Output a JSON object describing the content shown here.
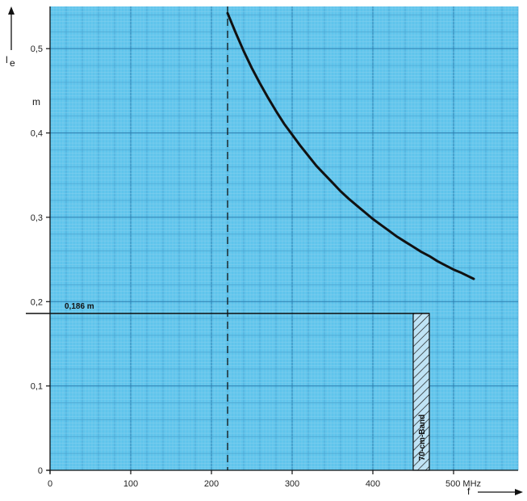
{
  "chart_data": {
    "type": "line",
    "title": "",
    "xlabel": "f",
    "ylabel": "l",
    "ylabel_subscript": "e",
    "y_unit": "m",
    "x_unit": "MHz",
    "xlim": [
      0,
      580
    ],
    "ylim": [
      0,
      0.55
    ],
    "x_ticks": [
      0,
      100,
      200,
      300,
      400,
      500
    ],
    "x_tick_labels": [
      "0",
      "100",
      "200",
      "300",
      "400",
      "500 MHz"
    ],
    "y_ticks": [
      0,
      0.1,
      0.2,
      0.3,
      0.4,
      0.5
    ],
    "y_tick_labels": [
      "0",
      "0,1",
      "0,2",
      "0,3",
      "0,4",
      "0,5"
    ],
    "grid": true,
    "series": [
      {
        "x": [
          220,
          230,
          240,
          250,
          260,
          270,
          280,
          290,
          300,
          310,
          320,
          330,
          340,
          350,
          360,
          370,
          380,
          390,
          400,
          410,
          420,
          430,
          440,
          450,
          460,
          470,
          480,
          490,
          500,
          510,
          525
        ],
        "y": [
          0.542,
          0.519,
          0.497,
          0.477,
          0.459,
          0.442,
          0.426,
          0.411,
          0.398,
          0.385,
          0.373,
          0.361,
          0.351,
          0.341,
          0.331,
          0.322,
          0.314,
          0.306,
          0.298,
          0.291,
          0.284,
          0.277,
          0.271,
          0.265,
          0.259,
          0.254,
          0.248,
          0.243,
          0.238,
          0.234,
          0.227
        ]
      }
    ],
    "reference_lines": {
      "vertical_x": 220,
      "horizontal_y": 0.186,
      "horizontal_label": "0,186 m"
    },
    "band": {
      "x_start": 450,
      "x_end": 470,
      "label": "70-cm-Band"
    }
  }
}
